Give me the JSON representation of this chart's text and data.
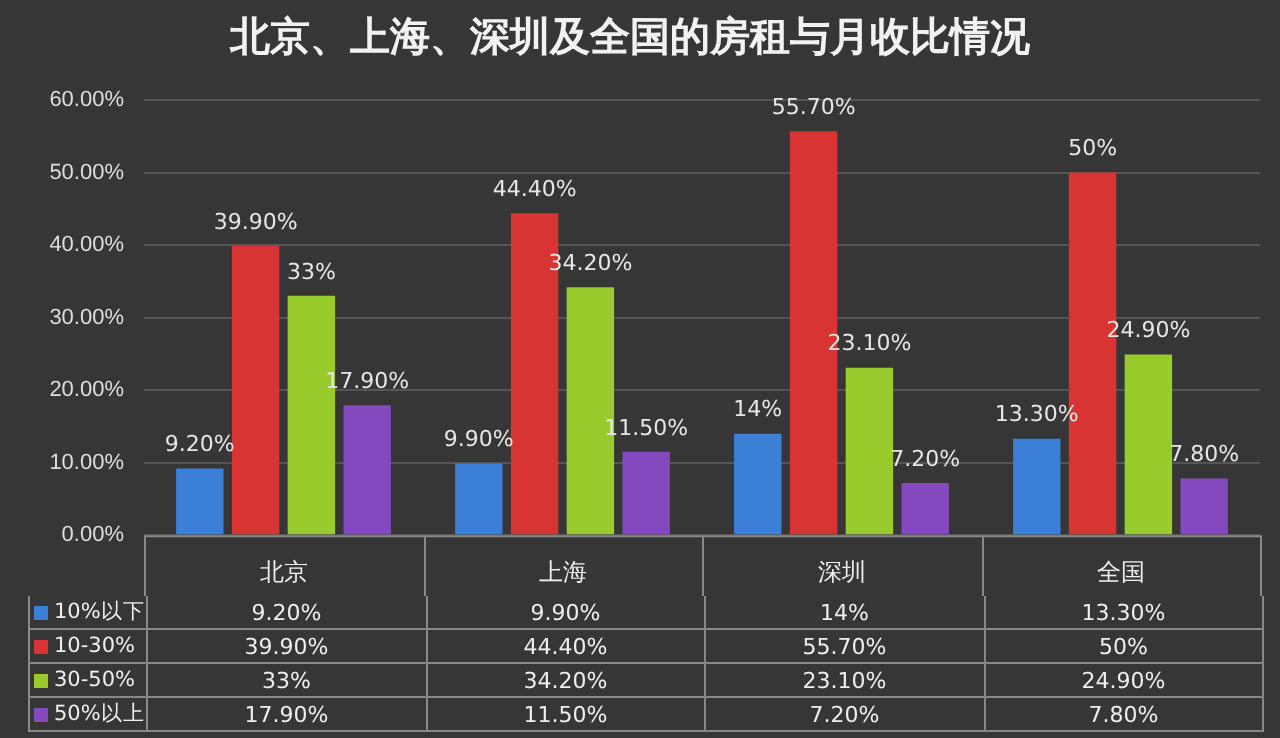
{
  "chart_data": {
    "type": "bar",
    "title": "北京、上海、深圳及全国的房租与月收比情况",
    "categories": [
      "北京",
      "上海",
      "深圳",
      "全国"
    ],
    "series": [
      {
        "name": "10%以下",
        "color": "#3b80d6",
        "values": [
          9.2,
          9.9,
          14,
          13.3
        ],
        "value_labels": [
          "9.20%",
          "9.90%",
          "14%",
          "13.30%"
        ]
      },
      {
        "name": "10-30%",
        "color": "#d83434",
        "values": [
          39.9,
          44.4,
          55.7,
          50
        ],
        "value_labels": [
          "39.90%",
          "44.40%",
          "55.70%",
          "50%"
        ]
      },
      {
        "name": "30-50%",
        "color": "#9acb2c",
        "values": [
          33,
          34.2,
          23.1,
          24.9
        ],
        "value_labels": [
          "33%",
          "34.20%",
          "23.10%",
          "24.90%"
        ]
      },
      {
        "name": "50%以上",
        "color": "#8448bf",
        "values": [
          17.9,
          11.5,
          7.2,
          7.8
        ],
        "value_labels": [
          "17.90%",
          "11.50%",
          "7.20%",
          "7.80%"
        ]
      }
    ],
    "ylim": [
      0,
      60
    ],
    "yticks": [
      {
        "value": 0,
        "label": "0.00%"
      },
      {
        "value": 10,
        "label": "10.00%"
      },
      {
        "value": 20,
        "label": "20.00%"
      },
      {
        "value": 30,
        "label": "30.00%"
      },
      {
        "value": 40,
        "label": "40.00%"
      },
      {
        "value": 50,
        "label": "50.00%"
      },
      {
        "value": 60,
        "label": "60.00%"
      }
    ],
    "grid": "y",
    "legend": "bottom"
  }
}
